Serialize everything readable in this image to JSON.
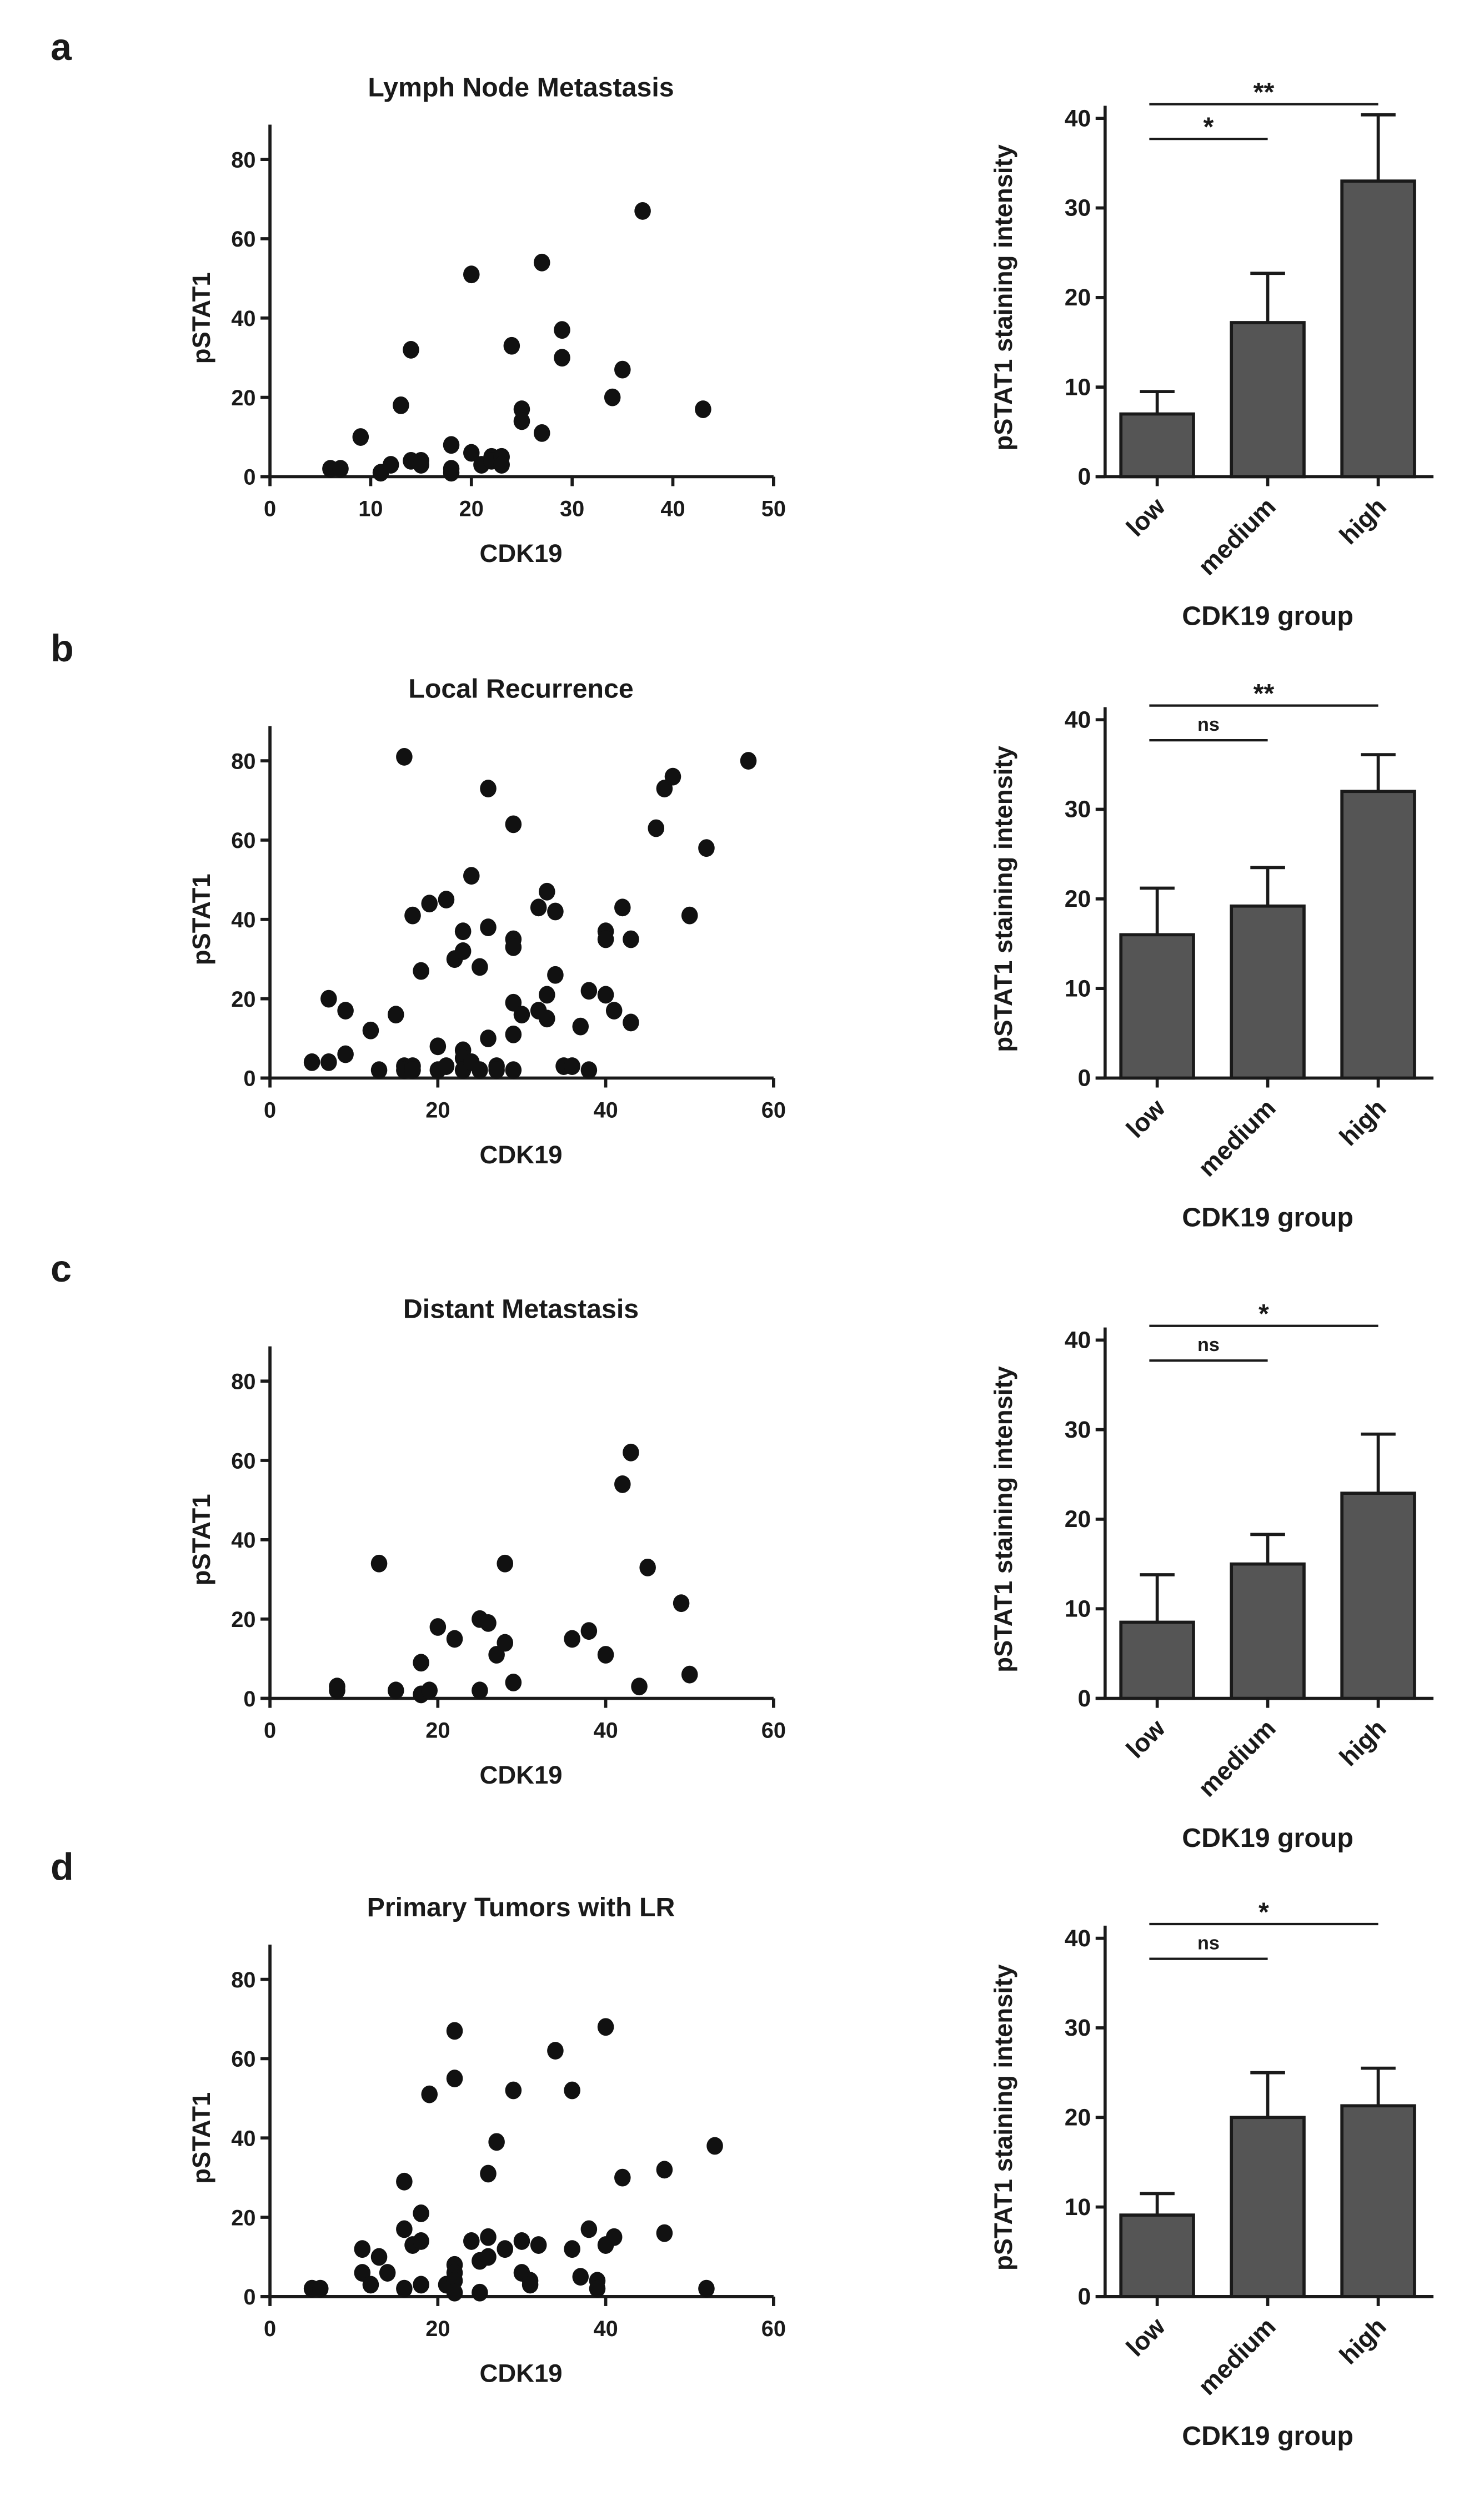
{
  "chart_data": [
    {
      "panel": "a",
      "type": "scatter",
      "title": "Lymph Node Metastasis",
      "xlabel": "CDK19",
      "ylabel": "pSTAT1",
      "xlim": [
        0,
        50
      ],
      "ylim": [
        0,
        80
      ],
      "xticks": [
        0,
        10,
        20,
        30,
        40,
        50
      ],
      "yticks": [
        0,
        20,
        40,
        60,
        80
      ],
      "grid": false,
      "points": [
        [
          6,
          2
        ],
        [
          7,
          2
        ],
        [
          9,
          10
        ],
        [
          11,
          1
        ],
        [
          12,
          3
        ],
        [
          13,
          18
        ],
        [
          14,
          32
        ],
        [
          14,
          4
        ],
        [
          15,
          4
        ],
        [
          15,
          3
        ],
        [
          18,
          8
        ],
        [
          18,
          2
        ],
        [
          18,
          1
        ],
        [
          20,
          51
        ],
        [
          20,
          6
        ],
        [
          21,
          3
        ],
        [
          22,
          5
        ],
        [
          22,
          4
        ],
        [
          23,
          5
        ],
        [
          23,
          3
        ],
        [
          24,
          33
        ],
        [
          25,
          17
        ],
        [
          25,
          14
        ],
        [
          27,
          54
        ],
        [
          27,
          11
        ],
        [
          29,
          37
        ],
        [
          29,
          30
        ],
        [
          34,
          20
        ],
        [
          35,
          27
        ],
        [
          37,
          67
        ],
        [
          43,
          17
        ]
      ]
    },
    {
      "panel": "a",
      "type": "bar",
      "xlabel": "CDK19 group",
      "ylabel": "pSTAT1 staining intensity",
      "ylim": [
        0,
        40
      ],
      "yticks": [
        0,
        10,
        20,
        30,
        40
      ],
      "color": "#555555",
      "categories": [
        "low",
        "medium",
        "high"
      ],
      "values": [
        7,
        17.2,
        33
      ],
      "error_upper": [
        9.5,
        22.7,
        40.4
      ],
      "significance": [
        {
          "from": "low",
          "to": "medium",
          "label": "*"
        },
        {
          "from": "low",
          "to": "high",
          "label": "**"
        }
      ]
    },
    {
      "panel": "b",
      "type": "scatter",
      "title": "Local Recurrence",
      "xlabel": "CDK19",
      "ylabel": "pSTAT1",
      "xlim": [
        0,
        60
      ],
      "ylim": [
        0,
        80
      ],
      "xticks": [
        0,
        20,
        40,
        60
      ],
      "yticks": [
        0,
        20,
        40,
        60,
        80
      ],
      "grid": false,
      "points": [
        [
          5,
          4
        ],
        [
          7,
          20
        ],
        [
          7,
          4
        ],
        [
          9,
          17
        ],
        [
          9,
          6
        ],
        [
          12,
          12
        ],
        [
          13,
          2
        ],
        [
          15,
          16
        ],
        [
          16,
          81
        ],
        [
          16,
          3
        ],
        [
          16,
          2
        ],
        [
          17,
          41
        ],
        [
          17,
          3
        ],
        [
          17,
          2
        ],
        [
          18,
          27
        ],
        [
          19,
          44
        ],
        [
          20,
          8
        ],
        [
          20,
          2
        ],
        [
          21,
          45
        ],
        [
          21,
          3
        ],
        [
          22,
          30
        ],
        [
          23,
          37
        ],
        [
          23,
          32
        ],
        [
          23,
          7
        ],
        [
          23,
          5
        ],
        [
          23,
          2
        ],
        [
          24,
          51
        ],
        [
          24,
          4
        ],
        [
          25,
          28
        ],
        [
          25,
          2
        ],
        [
          26,
          73
        ],
        [
          26,
          38
        ],
        [
          26,
          10
        ],
        [
          27,
          3
        ],
        [
          27,
          2
        ],
        [
          29,
          64
        ],
        [
          29,
          35
        ],
        [
          29,
          33
        ],
        [
          29,
          19
        ],
        [
          29,
          11
        ],
        [
          29,
          2
        ],
        [
          30,
          16
        ],
        [
          32,
          43
        ],
        [
          32,
          17
        ],
        [
          33,
          47
        ],
        [
          33,
          21
        ],
        [
          33,
          15
        ],
        [
          34,
          42
        ],
        [
          34,
          26
        ],
        [
          35,
          3
        ],
        [
          36,
          3
        ],
        [
          37,
          13
        ],
        [
          38,
          22
        ],
        [
          38,
          2
        ],
        [
          40,
          37
        ],
        [
          40,
          35
        ],
        [
          40,
          21
        ],
        [
          41,
          17
        ],
        [
          42,
          43
        ],
        [
          43,
          35
        ],
        [
          43,
          14
        ],
        [
          46,
          63
        ],
        [
          47,
          73
        ],
        [
          48,
          76
        ],
        [
          50,
          41
        ],
        [
          52,
          58
        ],
        [
          57,
          80
        ]
      ]
    },
    {
      "panel": "b",
      "type": "bar",
      "xlabel": "CDK19 group",
      "ylabel": "pSTAT1 staining intensity",
      "ylim": [
        0,
        40
      ],
      "yticks": [
        0,
        10,
        20,
        30,
        40
      ],
      "color": "#555555",
      "categories": [
        "low",
        "medium",
        "high"
      ],
      "values": [
        16,
        19.2,
        32
      ],
      "error_upper": [
        21.2,
        23.5,
        36.1
      ],
      "significance": [
        {
          "from": "low",
          "to": "medium",
          "label": "ns"
        },
        {
          "from": "low",
          "to": "high",
          "label": "**"
        }
      ]
    },
    {
      "panel": "c",
      "type": "scatter",
      "title": "Distant Metastasis",
      "xlabel": "CDK19",
      "ylabel": "pSTAT1",
      "xlim": [
        0,
        60
      ],
      "ylim": [
        0,
        80
      ],
      "xticks": [
        0,
        20,
        40,
        60
      ],
      "yticks": [
        0,
        20,
        40,
        60,
        80
      ],
      "grid": false,
      "points": [
        [
          8,
          3
        ],
        [
          8,
          2
        ],
        [
          13,
          34
        ],
        [
          15,
          2
        ],
        [
          18,
          9
        ],
        [
          18,
          1
        ],
        [
          19,
          2
        ],
        [
          20,
          18
        ],
        [
          22,
          15
        ],
        [
          25,
          20
        ],
        [
          25,
          2
        ],
        [
          26,
          19
        ],
        [
          27,
          11
        ],
        [
          28,
          34
        ],
        [
          28,
          14
        ],
        [
          29,
          4
        ],
        [
          36,
          15
        ],
        [
          38,
          17
        ],
        [
          40,
          11
        ],
        [
          42,
          54
        ],
        [
          43,
          62
        ],
        [
          44,
          3
        ],
        [
          45,
          33
        ],
        [
          49,
          24
        ],
        [
          50,
          6
        ]
      ]
    },
    {
      "panel": "c",
      "type": "bar",
      "xlabel": "CDK19 group",
      "ylabel": "pSTAT1 staining intensity",
      "ylim": [
        0,
        40
      ],
      "yticks": [
        0,
        10,
        20,
        30,
        40
      ],
      "color": "#555555",
      "categories": [
        "low",
        "medium",
        "high"
      ],
      "values": [
        8.5,
        15,
        22.9
      ],
      "error_upper": [
        13.8,
        18.3,
        29.5
      ],
      "significance": [
        {
          "from": "low",
          "to": "medium",
          "label": "ns"
        },
        {
          "from": "low",
          "to": "high",
          "label": "*"
        }
      ]
    },
    {
      "panel": "d",
      "type": "scatter",
      "title": "Primary Tumors with LR",
      "xlabel": "CDK19",
      "ylabel": "pSTAT1",
      "xlim": [
        0,
        60
      ],
      "ylim": [
        0,
        80
      ],
      "xticks": [
        0,
        20,
        40,
        60
      ],
      "yticks": [
        0,
        20,
        40,
        60,
        80
      ],
      "grid": false,
      "points": [
        [
          5,
          2
        ],
        [
          6,
          2
        ],
        [
          11,
          12
        ],
        [
          11,
          6
        ],
        [
          12,
          3
        ],
        [
          13,
          10
        ],
        [
          14,
          6
        ],
        [
          16,
          29
        ],
        [
          16,
          17
        ],
        [
          16,
          2
        ],
        [
          17,
          13
        ],
        [
          18,
          14
        ],
        [
          18,
          21
        ],
        [
          18,
          3
        ],
        [
          19,
          51
        ],
        [
          21,
          3
        ],
        [
          22,
          67
        ],
        [
          22,
          55
        ],
        [
          22,
          8
        ],
        [
          22,
          6
        ],
        [
          22,
          4
        ],
        [
          22,
          1
        ],
        [
          24,
          14
        ],
        [
          25,
          9
        ],
        [
          25,
          1
        ],
        [
          26,
          31
        ],
        [
          26,
          15
        ],
        [
          26,
          10
        ],
        [
          27,
          39
        ],
        [
          28,
          12
        ],
        [
          29,
          52
        ],
        [
          30,
          14
        ],
        [
          30,
          6
        ],
        [
          31,
          4
        ],
        [
          31,
          3
        ],
        [
          32,
          13
        ],
        [
          34,
          62
        ],
        [
          36,
          52
        ],
        [
          36,
          12
        ],
        [
          37,
          5
        ],
        [
          38,
          17
        ],
        [
          39,
          4
        ],
        [
          39,
          2
        ],
        [
          40,
          68
        ],
        [
          40,
          13
        ],
        [
          41,
          15
        ],
        [
          42,
          30
        ],
        [
          47,
          32
        ],
        [
          47,
          16
        ],
        [
          52,
          2
        ],
        [
          53,
          38
        ]
      ]
    },
    {
      "panel": "d",
      "type": "bar",
      "xlabel": "CDK19 group",
      "ylabel": "pSTAT1 staining intensity",
      "ylim": [
        0,
        40
      ],
      "yticks": [
        0,
        10,
        20,
        30,
        40
      ],
      "color": "#555555",
      "categories": [
        "low",
        "medium",
        "high"
      ],
      "values": [
        9.1,
        20,
        21.3
      ],
      "error_upper": [
        11.5,
        25,
        25.5
      ],
      "significance": [
        {
          "from": "low",
          "to": "medium",
          "label": "ns"
        },
        {
          "from": "low",
          "to": "high",
          "label": "*"
        }
      ]
    }
  ]
}
